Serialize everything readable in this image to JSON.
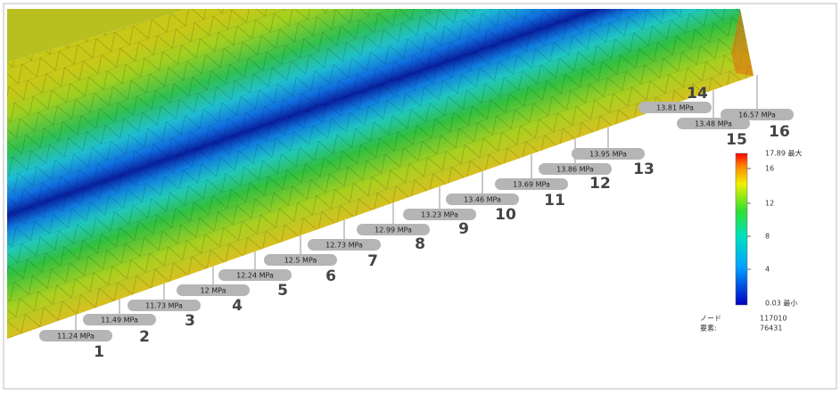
{
  "probes": [
    {
      "number": "1",
      "value": "11.24 MPa"
    },
    {
      "number": "2",
      "value": "11.49 MPa"
    },
    {
      "number": "3",
      "value": "11.73 MPa"
    },
    {
      "number": "4",
      "value": "12 MPa"
    },
    {
      "number": "5",
      "value": "12.24 MPa"
    },
    {
      "number": "6",
      "value": "12.5 MPa"
    },
    {
      "number": "7",
      "value": "12.73 MPa"
    },
    {
      "number": "8",
      "value": "12.99 MPa"
    },
    {
      "number": "9",
      "value": "13.23 MPa"
    },
    {
      "number": "10",
      "value": "13.46 MPa"
    },
    {
      "number": "11",
      "value": "13.69 MPa"
    },
    {
      "number": "12",
      "value": "13.86 MPa"
    },
    {
      "number": "13",
      "value": "13.95 MPa"
    },
    {
      "number": "14",
      "value": "13.81 MPa"
    },
    {
      "number": "15",
      "value": "13.48 MPa"
    },
    {
      "number": "16",
      "value": "16.57 MPa"
    }
  ],
  "legend": {
    "max": "17.89 最大",
    "ticks": [
      "16",
      "12",
      "8",
      "4"
    ],
    "min": "0.03 最小"
  },
  "info": {
    "node_label": "ノード",
    "node_value": "117010",
    "element_label": "要素:",
    "element_value": "76431"
  }
}
